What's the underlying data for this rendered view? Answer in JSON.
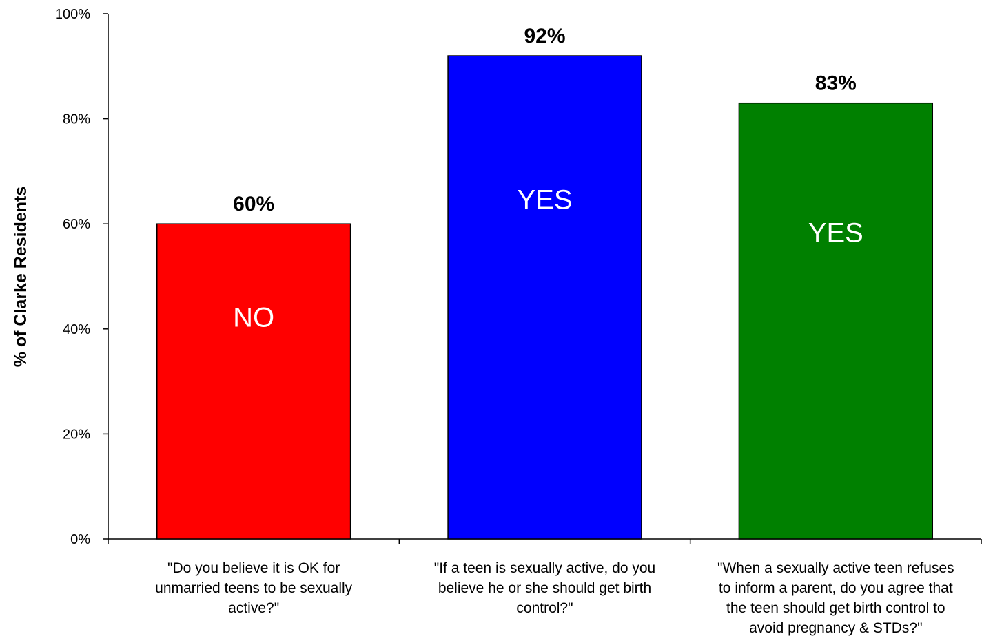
{
  "chart_data": {
    "type": "bar",
    "ylabel": "% of Clarke Residents",
    "ylim": [
      0,
      100
    ],
    "yticks": [
      0,
      20,
      40,
      60,
      80,
      100
    ],
    "ytick_labels": [
      "0%",
      "20%",
      "40%",
      "60%",
      "80%",
      "100%"
    ],
    "categories": [
      [
        "\"Do you believe it is OK for",
        "unmarried teens to be sexually",
        "active?\""
      ],
      [
        "\"If a teen is sexually active, do you",
        "believe he or she should get birth",
        "control?\""
      ],
      [
        "\"When a sexually active teen refuses",
        "to inform a parent, do you agree that",
        "the teen should get birth control to",
        "avoid pregnancy & STDs?\""
      ]
    ],
    "values": [
      60,
      92,
      83
    ],
    "value_labels": [
      "60%",
      "92%",
      "83%"
    ],
    "bar_labels": [
      "NO",
      "YES",
      "YES"
    ],
    "colors": [
      "#ff0000",
      "#0000ff",
      "#008000"
    ],
    "grid": false,
    "legend": "none"
  }
}
